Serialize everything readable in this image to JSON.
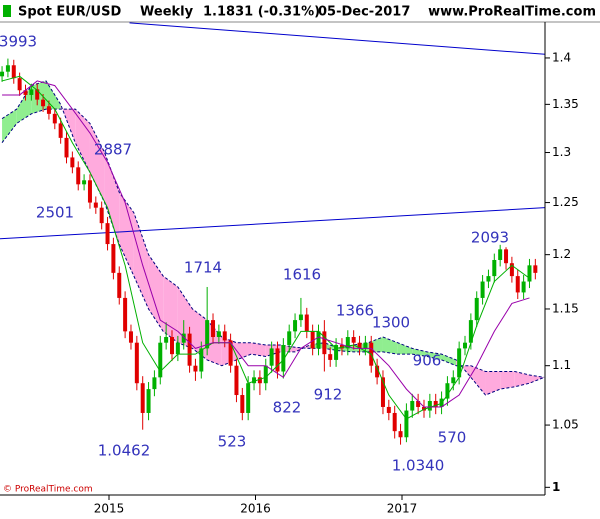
{
  "chart_data": {
    "type": "candlestick",
    "header": {
      "symbol": "Spot EUR/USD",
      "period": "Weekly",
      "last": "1.1831 (-0.31%)",
      "date": "05-Dec-2017",
      "site": "www.ProRealTime.com"
    },
    "footer": "© ProRealTime.com",
    "log_scale": true,
    "xlim": [
      2014.256,
      2017.976
    ],
    "xticks": [
      2015,
      2016,
      2017
    ],
    "ylim": [
      0.994,
      1.44
    ],
    "yticks": [
      1.4,
      1.35,
      1.3,
      1.25,
      1.2,
      1.15,
      1.1,
      1.05,
      1
    ],
    "up_color": "#00b000",
    "down_color": "#e00000",
    "x": [
      2014.27,
      2014.31,
      2014.35,
      2014.39,
      2014.43,
      2014.47,
      2014.51,
      2014.55,
      2014.59,
      2014.63,
      2014.67,
      2014.71,
      2014.75,
      2014.79,
      2014.83,
      2014.87,
      2014.91,
      2014.95,
      2014.99,
      2015.03,
      2015.07,
      2015.11,
      2015.15,
      2015.19,
      2015.23,
      2015.27,
      2015.31,
      2015.35,
      2015.39,
      2015.43,
      2015.47,
      2015.51,
      2015.55,
      2015.59,
      2015.63,
      2015.67,
      2015.71,
      2015.75,
      2015.79,
      2015.83,
      2015.87,
      2015.91,
      2015.95,
      2015.99,
      2016.03,
      2016.07,
      2016.11,
      2016.15,
      2016.19,
      2016.23,
      2016.27,
      2016.31,
      2016.35,
      2016.39,
      2016.43,
      2016.47,
      2016.51,
      2016.55,
      2016.59,
      2016.63,
      2016.67,
      2016.71,
      2016.75,
      2016.79,
      2016.83,
      2016.87,
      2016.91,
      2016.95,
      2016.99,
      2017.03,
      2017.07,
      2017.11,
      2017.15,
      2017.19,
      2017.23,
      2017.27,
      2017.31,
      2017.35,
      2017.39,
      2017.43,
      2017.47,
      2017.51,
      2017.55,
      2017.59,
      2017.63,
      2017.67,
      2017.71,
      2017.75,
      2017.79,
      2017.83,
      2017.87,
      2017.91
    ],
    "open": [
      1.38,
      1.385,
      1.392,
      1.378,
      1.365,
      1.36,
      1.366,
      1.355,
      1.348,
      1.34,
      1.33,
      1.315,
      1.295,
      1.285,
      1.268,
      1.272,
      1.25,
      1.245,
      1.23,
      1.21,
      1.183,
      1.16,
      1.13,
      1.12,
      1.085,
      1.06,
      1.08,
      1.09,
      1.12,
      1.125,
      1.11,
      1.12,
      1.128,
      1.1,
      1.095,
      1.115,
      1.14,
      1.125,
      1.13,
      1.122,
      1.1,
      1.075,
      1.06,
      1.085,
      1.09,
      1.085,
      1.1,
      1.115,
      1.095,
      1.118,
      1.13,
      1.14,
      1.145,
      1.13,
      1.115,
      1.13,
      1.11,
      1.105,
      1.118,
      1.115,
      1.125,
      1.12,
      1.115,
      1.12,
      1.1,
      1.09,
      1.065,
      1.06,
      1.045,
      1.04,
      1.062,
      1.07,
      1.065,
      1.062,
      1.07,
      1.065,
      1.072,
      1.085,
      1.09,
      1.115,
      1.12,
      1.14,
      1.16,
      1.175,
      1.18,
      1.195,
      1.205,
      1.192,
      1.18,
      1.165,
      1.175,
      1.19
    ],
    "high": [
      1.391,
      1.3993,
      1.398,
      1.384,
      1.371,
      1.372,
      1.372,
      1.361,
      1.354,
      1.346,
      1.336,
      1.321,
      1.301,
      1.291,
      1.278,
      1.278,
      1.256,
      1.251,
      1.236,
      1.216,
      1.189,
      1.166,
      1.136,
      1.126,
      1.091,
      1.086,
      1.096,
      1.126,
      1.138,
      1.131,
      1.126,
      1.14,
      1.134,
      1.106,
      1.121,
      1.17,
      1.146,
      1.136,
      1.136,
      1.128,
      1.106,
      1.081,
      1.091,
      1.096,
      1.096,
      1.106,
      1.121,
      1.121,
      1.124,
      1.136,
      1.146,
      1.16,
      1.151,
      1.136,
      1.136,
      1.14,
      1.116,
      1.124,
      1.124,
      1.131,
      1.131,
      1.126,
      1.126,
      1.126,
      1.106,
      1.096,
      1.071,
      1.066,
      1.051,
      1.068,
      1.076,
      1.076,
      1.071,
      1.076,
      1.076,
      1.078,
      1.091,
      1.096,
      1.121,
      1.126,
      1.146,
      1.166,
      1.181,
      1.186,
      1.201,
      1.2093,
      1.207,
      1.198,
      1.186,
      1.181,
      1.196,
      1.196
    ],
    "low": [
      1.374,
      1.379,
      1.372,
      1.359,
      1.354,
      1.354,
      1.349,
      1.342,
      1.334,
      1.324,
      1.309,
      1.289,
      1.279,
      1.262,
      1.262,
      1.244,
      1.239,
      1.224,
      1.204,
      1.177,
      1.154,
      1.124,
      1.114,
      1.079,
      1.0462,
      1.054,
      1.074,
      1.084,
      1.114,
      1.104,
      1.104,
      1.114,
      1.094,
      1.087,
      1.089,
      1.109,
      1.119,
      1.119,
      1.116,
      1.094,
      1.069,
      1.054,
      1.054,
      1.079,
      1.075,
      1.079,
      1.094,
      1.089,
      1.089,
      1.112,
      1.124,
      1.134,
      1.124,
      1.109,
      1.109,
      1.095,
      1.099,
      1.099,
      1.109,
      1.109,
      1.114,
      1.109,
      1.109,
      1.094,
      1.084,
      1.059,
      1.054,
      1.039,
      1.034,
      1.036,
      1.056,
      1.059,
      1.056,
      1.056,
      1.059,
      1.059,
      1.066,
      1.079,
      1.084,
      1.109,
      1.114,
      1.134,
      1.154,
      1.169,
      1.174,
      1.189,
      1.186,
      1.174,
      1.159,
      1.159,
      1.169,
      1.177
    ],
    "close": [
      1.385,
      1.392,
      1.378,
      1.365,
      1.36,
      1.366,
      1.355,
      1.348,
      1.34,
      1.33,
      1.315,
      1.295,
      1.285,
      1.268,
      1.272,
      1.25,
      1.245,
      1.23,
      1.21,
      1.183,
      1.16,
      1.13,
      1.12,
      1.085,
      1.06,
      1.08,
      1.09,
      1.12,
      1.125,
      1.11,
      1.12,
      1.128,
      1.1,
      1.095,
      1.115,
      1.14,
      1.125,
      1.13,
      1.122,
      1.1,
      1.075,
      1.06,
      1.085,
      1.09,
      1.085,
      1.1,
      1.115,
      1.095,
      1.118,
      1.13,
      1.14,
      1.145,
      1.13,
      1.115,
      1.13,
      1.11,
      1.105,
      1.118,
      1.115,
      1.125,
      1.12,
      1.115,
      1.12,
      1.1,
      1.09,
      1.065,
      1.06,
      1.045,
      1.04,
      1.062,
      1.07,
      1.065,
      1.062,
      1.07,
      1.065,
      1.072,
      1.085,
      1.09,
      1.115,
      1.12,
      1.14,
      1.16,
      1.175,
      1.18,
      1.195,
      1.205,
      1.192,
      1.18,
      1.165,
      1.175,
      1.19,
      1.183
    ],
    "lines": [
      {
        "color": "#00b000",
        "x": [
          2014.27,
          2014.39,
          2014.51,
          2014.63,
          2014.75,
          2014.87,
          2014.99,
          2015.11,
          2015.23,
          2015.35,
          2015.47,
          2015.59,
          2015.71,
          2015.83,
          2015.95,
          2016.07,
          2016.19,
          2016.31,
          2016.43,
          2016.55,
          2016.67,
          2016.79,
          2016.91,
          2017.03,
          2017.15,
          2017.27,
          2017.39,
          2017.51,
          2017.63,
          2017.75,
          2017.87
        ],
        "values": [
          1.375,
          1.38,
          1.365,
          1.345,
          1.31,
          1.28,
          1.245,
          1.19,
          1.12,
          1.095,
          1.11,
          1.11,
          1.12,
          1.12,
          1.085,
          1.09,
          1.105,
          1.13,
          1.13,
          1.115,
          1.118,
          1.11,
          1.075,
          1.055,
          1.063,
          1.068,
          1.09,
          1.135,
          1.175,
          1.19,
          1.178
        ]
      },
      {
        "color": "#9900aa",
        "x": [
          2014.27,
          2014.39,
          2014.51,
          2014.63,
          2014.75,
          2014.87,
          2014.99,
          2015.11,
          2015.23,
          2015.35,
          2015.47,
          2015.59,
          2015.71,
          2015.83,
          2015.95,
          2016.07,
          2016.19,
          2016.31,
          2016.43,
          2016.55,
          2016.67,
          2016.79,
          2016.91,
          2017.03,
          2017.15,
          2017.27,
          2017.39,
          2017.51,
          2017.63,
          2017.75,
          2017.87
        ],
        "values": [
          1.36,
          1.36,
          1.375,
          1.37,
          1.345,
          1.32,
          1.29,
          1.25,
          1.19,
          1.14,
          1.13,
          1.115,
          1.12,
          1.12,
          1.1,
          1.1,
          1.09,
          1.115,
          1.125,
          1.12,
          1.115,
          1.115,
          1.1,
          1.08,
          1.065,
          1.065,
          1.075,
          1.1,
          1.13,
          1.155,
          1.16
        ]
      }
    ],
    "cloud": {
      "up_color": "#90ee90",
      "down_color": "#ffaadd",
      "edge_color": "#000080",
      "x": [
        2014.27,
        2014.37,
        2014.47,
        2014.57,
        2014.67,
        2014.77,
        2014.87,
        2014.97,
        2015.07,
        2015.17,
        2015.27,
        2015.37,
        2015.47,
        2015.57,
        2015.67,
        2015.77,
        2015.87,
        2015.97,
        2016.07,
        2016.17,
        2016.27,
        2016.37,
        2016.47,
        2016.57,
        2016.67,
        2016.77,
        2016.87,
        2016.97,
        2017.07,
        2017.17,
        2017.27,
        2017.37,
        2017.47,
        2017.57,
        2017.67,
        2017.77,
        2017.87,
        2017.97
      ],
      "span_a": [
        1.335,
        1.345,
        1.37,
        1.375,
        1.35,
        1.31,
        1.28,
        1.25,
        1.21,
        1.18,
        1.15,
        1.13,
        1.12,
        1.115,
        1.105,
        1.1,
        1.105,
        1.11,
        1.108,
        1.112,
        1.112,
        1.118,
        1.12,
        1.115,
        1.118,
        1.12,
        1.125,
        1.12,
        1.115,
        1.112,
        1.11,
        1.105,
        1.09,
        1.075,
        1.08,
        1.082,
        1.085,
        1.09
      ],
      "span_b": [
        1.31,
        1.33,
        1.34,
        1.345,
        1.345,
        1.345,
        1.33,
        1.3,
        1.26,
        1.24,
        1.2,
        1.18,
        1.17,
        1.15,
        1.14,
        1.125,
        1.12,
        1.12,
        1.118,
        1.118,
        1.116,
        1.115,
        1.115,
        1.113,
        1.112,
        1.112,
        1.112,
        1.11,
        1.11,
        1.108,
        1.105,
        1.1,
        1.1,
        1.095,
        1.095,
        1.095,
        1.092,
        1.09
      ]
    },
    "trendlines": [
      {
        "color": "#0000cc",
        "x": [
          2015.14,
          2017.976
        ],
        "values": [
          1.439,
          1.404
        ]
      },
      {
        "color": "#0000cc",
        "x": [
          2014.256,
          2017.976
        ],
        "values": [
          1.215,
          1.245
        ]
      }
    ],
    "annotations": [
      "3993",
      "2887",
      "2501",
      "1714",
      "1616",
      "1366",
      "1300",
      "906",
      "2093",
      "822",
      "912",
      "570",
      "523",
      "1.0462",
      "1.0340"
    ]
  }
}
